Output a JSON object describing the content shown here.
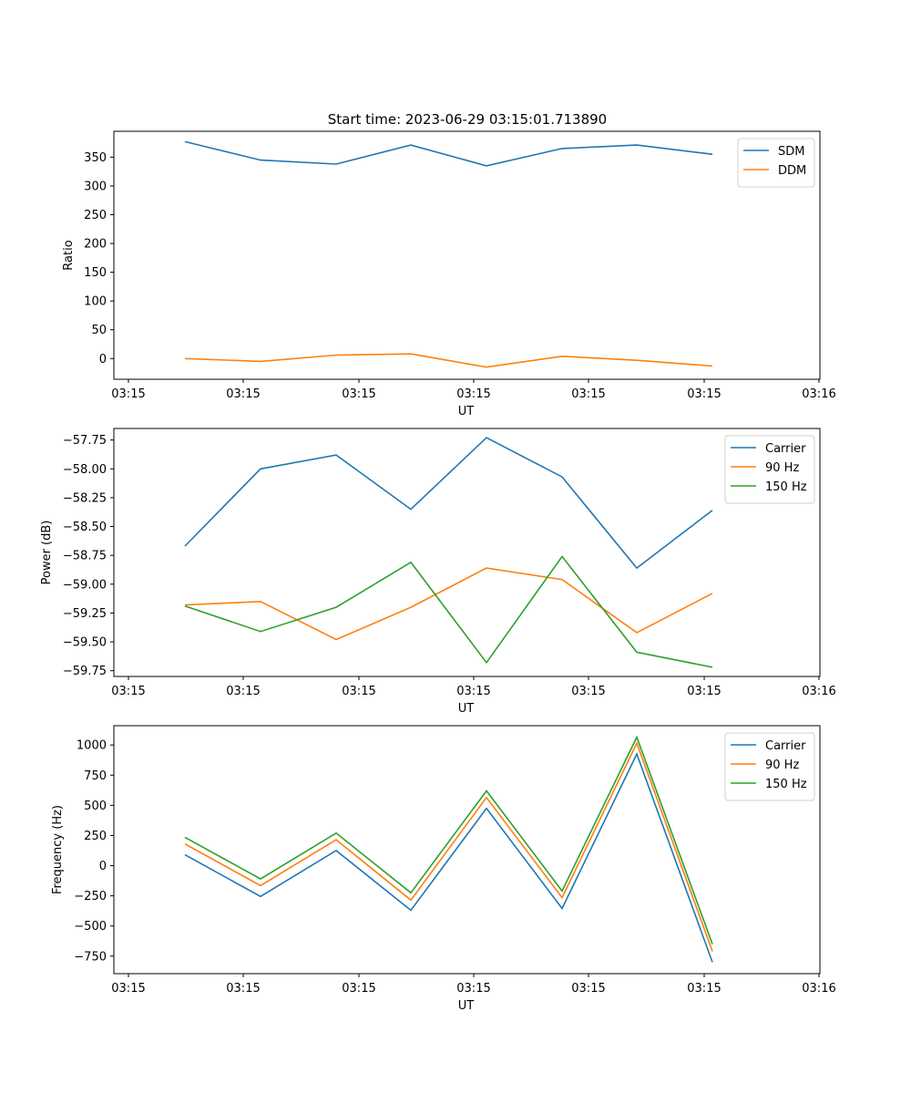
{
  "figure": {
    "title": "Start time: 2023-06-29 03:15:01.713890"
  },
  "chart_data": [
    {
      "type": "line",
      "title": "Start time: 2023-06-29 03:15:01.713890",
      "xlabel": "UT",
      "ylabel": "Ratio",
      "x_tick_labels": [
        "03:15",
        "03:15",
        "03:15",
        "03:15",
        "03:15",
        "03:15",
        "03:16"
      ],
      "y_ticks": [
        0,
        50,
        100,
        150,
        200,
        250,
        300,
        350
      ],
      "ylim": [
        -36,
        395
      ],
      "grid": false,
      "legend_position": "top-right",
      "series": [
        {
          "name": "SDM",
          "color": "#1f77b4",
          "values": [
            377,
            345,
            338,
            371,
            335,
            365,
            371,
            355
          ]
        },
        {
          "name": "DDM",
          "color": "#ff7f0e",
          "values": [
            0,
            -5,
            6,
            8,
            -15,
            4,
            -3,
            -13
          ]
        }
      ]
    },
    {
      "type": "line",
      "title": "",
      "xlabel": "UT",
      "ylabel": "Power (dB)",
      "x_tick_labels": [
        "03:15",
        "03:15",
        "03:15",
        "03:15",
        "03:15",
        "03:15",
        "03:16"
      ],
      "y_ticks": [
        -59.75,
        -59.5,
        -59.25,
        -59.0,
        -58.75,
        -58.5,
        -58.25,
        -58.0,
        -57.75
      ],
      "y_tick_labels": [
        "−59.75",
        "−59.50",
        "−59.25",
        "−59.00",
        "−58.75",
        "−58.50",
        "−58.25",
        "−58.00",
        "−57.75"
      ],
      "ylim": [
        -59.8,
        -57.65
      ],
      "grid": false,
      "legend_position": "top-right",
      "series": [
        {
          "name": "Carrier",
          "color": "#1f77b4",
          "values": [
            -58.67,
            -58.0,
            -57.88,
            -58.35,
            -57.73,
            -58.07,
            -58.86,
            -58.36
          ]
        },
        {
          "name": "90 Hz",
          "color": "#ff7f0e",
          "values": [
            -59.18,
            -59.15,
            -59.48,
            -59.2,
            -58.86,
            -58.96,
            -59.42,
            -59.08
          ]
        },
        {
          "name": "150 Hz",
          "color": "#2ca02c",
          "values": [
            -59.19,
            -59.41,
            -59.2,
            -58.81,
            -59.68,
            -58.76,
            -59.59,
            -59.72
          ]
        }
      ]
    },
    {
      "type": "line",
      "title": "",
      "xlabel": "UT",
      "ylabel": "Frequency (Hz)",
      "x_tick_labels": [
        "03:15",
        "03:15",
        "03:15",
        "03:15",
        "03:15",
        "03:15",
        "03:16"
      ],
      "y_ticks": [
        -750,
        -500,
        -250,
        0,
        250,
        500,
        750,
        1000
      ],
      "y_tick_labels": [
        "−750",
        "−500",
        "−250",
        "0",
        "250",
        "500",
        "750",
        "1000"
      ],
      "ylim": [
        -895,
        1160
      ],
      "grid": false,
      "legend_position": "top-right",
      "series": [
        {
          "name": "Carrier",
          "color": "#1f77b4",
          "values": [
            90,
            -255,
            125,
            -370,
            475,
            -355,
            925,
            -800
          ]
        },
        {
          "name": "90 Hz",
          "color": "#ff7f0e",
          "values": [
            180,
            -165,
            215,
            -285,
            565,
            -265,
            1015,
            -710
          ]
        },
        {
          "name": "150 Hz",
          "color": "#2ca02c",
          "values": [
            235,
            -110,
            270,
            -225,
            620,
            -210,
            1065,
            -650
          ]
        }
      ]
    }
  ]
}
